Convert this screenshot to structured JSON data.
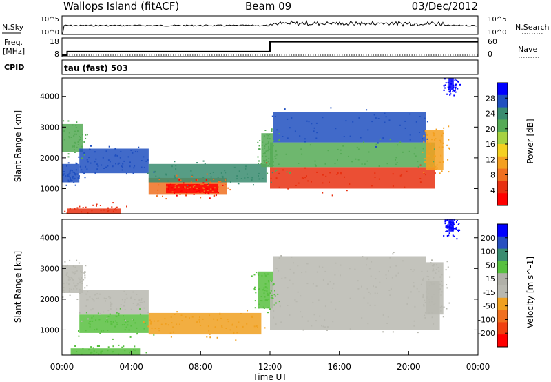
{
  "header": {
    "station": "Wallops Island (fitACF)",
    "beam": "Beam 09",
    "date": "03/Dec/2012",
    "cpid_label": "CPID",
    "cpid_value": "tau (fast) 503"
  },
  "strip_nsky": {
    "left_label": "N.Sky",
    "right_label": "N.Search",
    "left_ticks": [
      "10^5",
      "10^0"
    ],
    "right_ticks": [
      "10^5",
      "10^0"
    ]
  },
  "strip_freq": {
    "left_label_line1": "Freq.",
    "left_label_line2": "[MHz]",
    "right_label": "Nave",
    "left_ticks": [
      "18",
      "8"
    ],
    "right_ticks": [
      "60",
      "0"
    ],
    "freq_steps": [
      {
        "t": 0.0,
        "f": 8
      },
      {
        "t": 0.3,
        "f": 10.3
      },
      {
        "t": 12.0,
        "f": 16.8
      },
      {
        "t": 24.0,
        "f": 16.8
      }
    ]
  },
  "chart_data": [
    {
      "type": "heatmap",
      "panel": "power",
      "ylabel": "Slant Range [km]",
      "xlabel": "",
      "ylim": [
        180,
        4600
      ],
      "xlim": [
        0,
        24
      ],
      "yticks": [
        1000,
        2000,
        3000,
        4000
      ],
      "colorbar": {
        "label": "Power [dB]",
        "tick_labels": [
          "4",
          "8",
          "12",
          "16",
          "20",
          "24",
          "28"
        ],
        "colors": [
          "#0000ff",
          "#2050c0",
          "#3a8c70",
          "#55aa55",
          "#a6d240",
          "#f4d020",
          "#f4a020",
          "#f07020",
          "#e83010",
          "#ff0000"
        ]
      },
      "regions": [
        {
          "t0": 0.0,
          "t1": 1.2,
          "r0": 2200,
          "r1": 3100,
          "color": "#55aa55"
        },
        {
          "t0": 0.0,
          "t1": 1.0,
          "r0": 1200,
          "r1": 1800,
          "color": "#2050c0"
        },
        {
          "t0": 0.3,
          "t1": 3.4,
          "r0": 180,
          "r1": 350,
          "color": "#e83010"
        },
        {
          "t0": 1.0,
          "t1": 5.0,
          "r0": 1500,
          "r1": 2300,
          "color": "#2050c0"
        },
        {
          "t0": 5.0,
          "t1": 9.5,
          "r0": 800,
          "r1": 1350,
          "color": "#f07020"
        },
        {
          "t0": 6.0,
          "t1": 9.0,
          "r0": 850,
          "r1": 1150,
          "color": "#ff0000"
        },
        {
          "t0": 5.0,
          "t1": 11.8,
          "r0": 1200,
          "r1": 1800,
          "color": "#3a8c70"
        },
        {
          "t0": 11.5,
          "t1": 12.2,
          "r0": 1700,
          "r1": 2800,
          "color": "#55aa55"
        },
        {
          "t0": 12.0,
          "t1": 21.5,
          "r0": 1000,
          "r1": 1700,
          "color": "#e83010"
        },
        {
          "t0": 12.0,
          "t1": 21.5,
          "r0": 1700,
          "r1": 2500,
          "color": "#55aa55"
        },
        {
          "t0": 12.2,
          "t1": 21.0,
          "r0": 2500,
          "r1": 3500,
          "color": "#2050c0"
        },
        {
          "t0": 21.0,
          "t1": 22.0,
          "r0": 1600,
          "r1": 2900,
          "color": "#f4a020"
        },
        {
          "t0": 22.3,
          "t1": 22.6,
          "r0": 4200,
          "r1": 4600,
          "color": "#0000ff"
        }
      ]
    },
    {
      "type": "heatmap",
      "panel": "velocity",
      "ylabel": "Slant Range [km]",
      "xlabel": "Time UT",
      "ylim": [
        180,
        4600
      ],
      "xlim": [
        0,
        24
      ],
      "yticks": [
        1000,
        2000,
        3000,
        4000
      ],
      "xtick_labels": [
        "00:00",
        "04:00",
        "08:00",
        "12:00",
        "16:00",
        "20:00",
        "00:00"
      ],
      "colorbar": {
        "label": "Velocity [m s^-1]",
        "tick_labels": [
          "200",
          "100",
          "50",
          "15",
          "-15",
          "-50",
          "-100",
          "-200"
        ],
        "colors": [
          "#0000ff",
          "#2850c0",
          "#3a8c70",
          "#58c040",
          "#b0b0a8",
          "#b8b8b0",
          "#f0a020",
          "#f07020",
          "#f04010",
          "#ff0000"
        ]
      },
      "regions": [
        {
          "t0": 0.0,
          "t1": 1.2,
          "r0": 2200,
          "r1": 3100,
          "color": "#b8b8b0"
        },
        {
          "t0": 0.5,
          "t1": 4.5,
          "r0": 180,
          "r1": 400,
          "color": "#58c040"
        },
        {
          "t0": 1.0,
          "t1": 5.0,
          "r0": 900,
          "r1": 1500,
          "color": "#58c040"
        },
        {
          "t0": 1.0,
          "t1": 5.0,
          "r0": 1500,
          "r1": 2300,
          "color": "#b8b8b0"
        },
        {
          "t0": 5.0,
          "t1": 11.5,
          "r0": 850,
          "r1": 1550,
          "color": "#f0a020"
        },
        {
          "t0": 11.3,
          "t1": 12.2,
          "r0": 1700,
          "r1": 2900,
          "color": "#58c040"
        },
        {
          "t0": 12.0,
          "t1": 21.8,
          "r0": 1000,
          "r1": 2600,
          "color": "#b8b8b0"
        },
        {
          "t0": 12.2,
          "t1": 21.0,
          "r0": 2600,
          "r1": 3400,
          "color": "#b8b8b0"
        },
        {
          "t0": 21.0,
          "t1": 22.0,
          "r0": 1500,
          "r1": 3200,
          "color": "#b8b8b0"
        },
        {
          "t0": 22.3,
          "t1": 22.6,
          "r0": 4200,
          "r1": 4600,
          "color": "#0000ff"
        }
      ]
    }
  ]
}
